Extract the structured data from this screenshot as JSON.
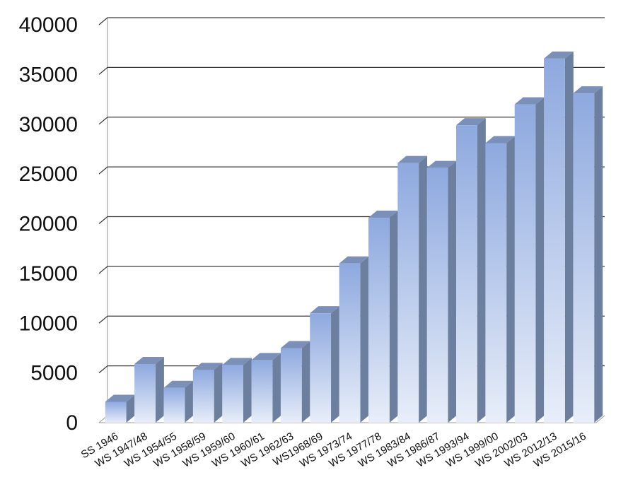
{
  "chart_data": {
    "type": "bar",
    "title": "",
    "xlabel": "",
    "ylabel": "",
    "ylim": [
      0,
      40000
    ],
    "yticks": [
      0,
      5000,
      10000,
      15000,
      20000,
      25000,
      30000,
      35000,
      40000
    ],
    "grid": true,
    "legend": "none",
    "style": "3d-gradient-columns",
    "colors": {
      "bar_top": "#8ea9df",
      "bar_bottom": "#e8eef9",
      "bar_side": "#6c7f9f",
      "bar_cap": "#7b90b8",
      "grid": "#3a3a3a"
    },
    "categories": [
      "SS 1946",
      "WS 1947/48",
      "WS 1954/55",
      "WS 1958/59",
      "WS 1959/60",
      "WS 1960/61",
      "WS 1962/63",
      "WS1968/69",
      "WS 1973/74",
      "WS 1977/78",
      "WS 1983/84",
      "WS 1986/87",
      "WS 1993/94",
      "WS 1999/00",
      "WS 2002/03",
      "WS 2012/13",
      "WS 2015/16"
    ],
    "values": [
      2100,
      5900,
      3500,
      5300,
      5800,
      6300,
      7500,
      11000,
      16000,
      20600,
      26100,
      25600,
      29900,
      28100,
      32000,
      36600,
      33100
    ]
  }
}
